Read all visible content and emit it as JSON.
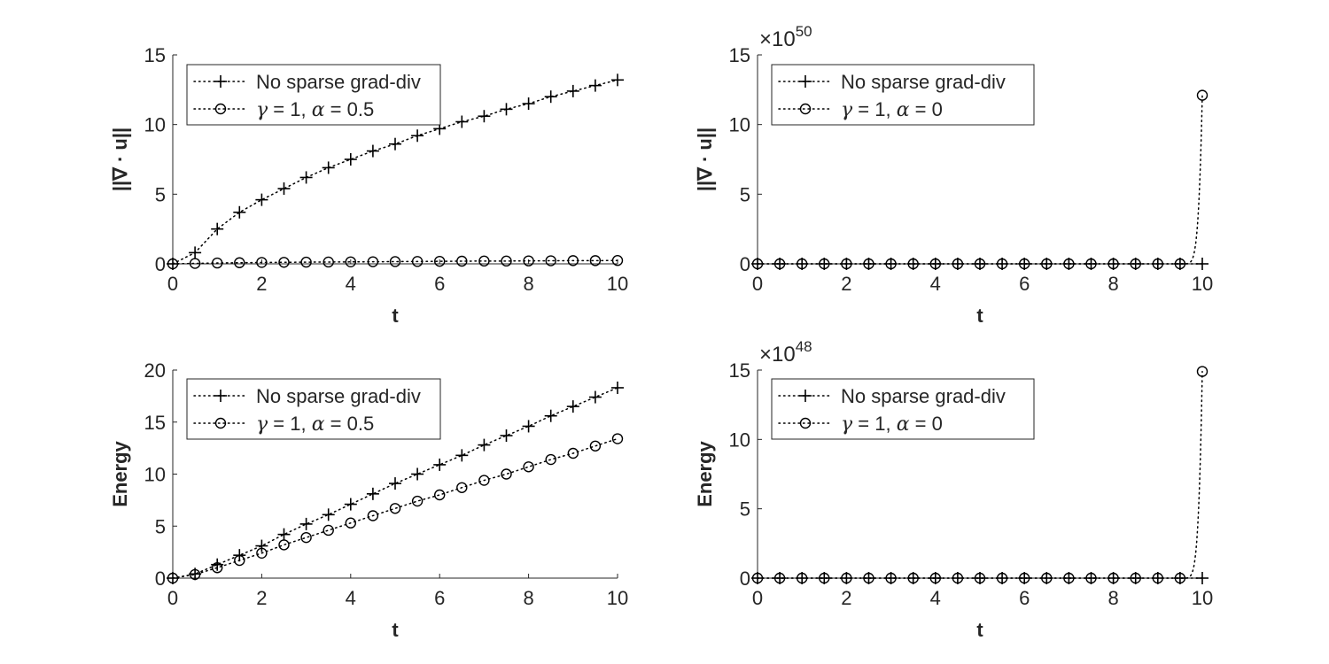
{
  "chart_data": [
    {
      "type": "line",
      "xlabel": "t",
      "ylabel": "||∇ · u||",
      "xlim": [
        0,
        10
      ],
      "ylim": [
        0,
        15
      ],
      "xticks": [
        "0",
        "2",
        "4",
        "6",
        "8",
        "10"
      ],
      "yticks": [
        "0",
        "5",
        "10",
        "15"
      ],
      "exponent": "",
      "legend_position": "top-left",
      "series": [
        {
          "name": "No sparse grad-div",
          "marker": "plus",
          "line": "dotted",
          "x": [
            0,
            0.5,
            1,
            1.5,
            2,
            2.5,
            3,
            3.5,
            4,
            4.5,
            5,
            5.5,
            6,
            6.5,
            7,
            7.5,
            8,
            8.5,
            9,
            9.5,
            10
          ],
          "y": [
            0,
            0.8,
            2.5,
            3.7,
            4.6,
            5.4,
            6.2,
            6.9,
            7.5,
            8.1,
            8.6,
            9.2,
            9.7,
            10.2,
            10.6,
            11.1,
            11.5,
            12.0,
            12.4,
            12.8,
            13.2
          ]
        },
        {
          "name": "γ = 1, α = 0.5",
          "marker": "circle",
          "line": "dotted",
          "x": [
            0,
            0.5,
            1,
            1.5,
            2,
            2.5,
            3,
            3.5,
            4,
            4.5,
            5,
            5.5,
            6,
            6.5,
            7,
            7.5,
            8,
            8.5,
            9,
            9.5,
            10
          ],
          "y": [
            0,
            0.03,
            0.06,
            0.08,
            0.1,
            0.11,
            0.12,
            0.13,
            0.14,
            0.15,
            0.16,
            0.17,
            0.18,
            0.19,
            0.2,
            0.2,
            0.21,
            0.22,
            0.23,
            0.23,
            0.24
          ]
        }
      ]
    },
    {
      "type": "line",
      "xlabel": "t",
      "ylabel": "||∇ · u||",
      "xlim": [
        0,
        10
      ],
      "ylim": [
        0,
        15
      ],
      "xticks": [
        "0",
        "2",
        "4",
        "6",
        "8",
        "10"
      ],
      "yticks": [
        "0",
        "5",
        "10",
        "15"
      ],
      "exponent": "50",
      "legend_position": "top-left",
      "series": [
        {
          "name": "No sparse grad-div",
          "marker": "plus",
          "line": "dotted",
          "x": [
            0,
            0.5,
            1,
            1.5,
            2,
            2.5,
            3,
            3.5,
            4,
            4.5,
            5,
            5.5,
            6,
            6.5,
            7,
            7.5,
            8,
            8.5,
            9,
            9.5,
            10
          ],
          "y": [
            0,
            0,
            0,
            0,
            0,
            0,
            0,
            0,
            0,
            0,
            0,
            0,
            0,
            0,
            0,
            0,
            0,
            0,
            0,
            0,
            0
          ]
        },
        {
          "name": "γ = 1, α = 0",
          "marker": "circle",
          "line": "dotted",
          "x": [
            0,
            0.5,
            1,
            1.5,
            2,
            2.5,
            3,
            3.5,
            4,
            4.5,
            5,
            5.5,
            6,
            6.5,
            7,
            7.5,
            8,
            8.5,
            9,
            9.5,
            10
          ],
          "y": [
            0,
            0,
            0,
            0,
            0,
            0,
            0,
            0,
            0,
            0,
            0,
            0,
            0,
            0,
            0,
            0,
            0,
            0,
            0,
            0,
            12.1
          ],
          "marker_indices": [
            0,
            1,
            2,
            3,
            4,
            5,
            6,
            7,
            8,
            9,
            10,
            11,
            12,
            13,
            14,
            15,
            16,
            17,
            18,
            19,
            20
          ]
        }
      ]
    },
    {
      "type": "line",
      "xlabel": "t",
      "ylabel": "Energy",
      "xlim": [
        0,
        10
      ],
      "ylim": [
        0,
        20
      ],
      "xticks": [
        "0",
        "2",
        "4",
        "6",
        "8",
        "10"
      ],
      "yticks": [
        "0",
        "5",
        "10",
        "15",
        "20"
      ],
      "exponent": "",
      "legend_position": "top-left",
      "series": [
        {
          "name": "No sparse grad-div",
          "marker": "plus",
          "line": "dotted",
          "x": [
            0,
            0.5,
            1,
            1.5,
            2,
            2.5,
            3,
            3.5,
            4,
            4.5,
            5,
            5.5,
            6,
            6.5,
            7,
            7.5,
            8,
            8.5,
            9,
            9.5,
            10
          ],
          "y": [
            0,
            0.4,
            1.3,
            2.2,
            3.1,
            4.2,
            5.2,
            6.1,
            7.1,
            8.1,
            9.1,
            10.0,
            10.9,
            11.8,
            12.8,
            13.7,
            14.6,
            15.6,
            16.5,
            17.4,
            18.3
          ]
        },
        {
          "name": "γ = 1, α = 0.5",
          "marker": "circle",
          "line": "dotted",
          "x": [
            0,
            0.5,
            1,
            1.5,
            2,
            2.5,
            3,
            3.5,
            4,
            4.5,
            5,
            5.5,
            6,
            6.5,
            7,
            7.5,
            8,
            8.5,
            9,
            9.5,
            10
          ],
          "y": [
            0,
            0.35,
            1.0,
            1.7,
            2.4,
            3.2,
            3.9,
            4.6,
            5.3,
            6.0,
            6.7,
            7.4,
            8.0,
            8.7,
            9.4,
            10.0,
            10.7,
            11.4,
            12.0,
            12.7,
            13.4
          ]
        }
      ]
    },
    {
      "type": "line",
      "xlabel": "t",
      "ylabel": "Energy",
      "xlim": [
        0,
        10
      ],
      "ylim": [
        0,
        15
      ],
      "xticks": [
        "0",
        "2",
        "4",
        "6",
        "8",
        "10"
      ],
      "yticks": [
        "0",
        "5",
        "10",
        "15"
      ],
      "exponent": "48",
      "legend_position": "top-left",
      "series": [
        {
          "name": "No sparse grad-div",
          "marker": "plus",
          "line": "dotted",
          "x": [
            0,
            0.5,
            1,
            1.5,
            2,
            2.5,
            3,
            3.5,
            4,
            4.5,
            5,
            5.5,
            6,
            6.5,
            7,
            7.5,
            8,
            8.5,
            9,
            9.5,
            10
          ],
          "y": [
            0,
            0,
            0,
            0,
            0,
            0,
            0,
            0,
            0,
            0,
            0,
            0,
            0,
            0,
            0,
            0,
            0,
            0,
            0,
            0,
            0
          ]
        },
        {
          "name": "γ = 1, α = 0",
          "marker": "circle",
          "line": "dotted",
          "x": [
            0,
            0.5,
            1,
            1.5,
            2,
            2.5,
            3,
            3.5,
            4,
            4.5,
            5,
            5.5,
            6,
            6.5,
            7,
            7.5,
            8,
            8.5,
            9,
            9.5,
            10
          ],
          "y": [
            0,
            0,
            0,
            0,
            0,
            0,
            0,
            0,
            0,
            0,
            0,
            0,
            0,
            0,
            0,
            0,
            0,
            0,
            0,
            0,
            14.9
          ]
        }
      ]
    }
  ]
}
